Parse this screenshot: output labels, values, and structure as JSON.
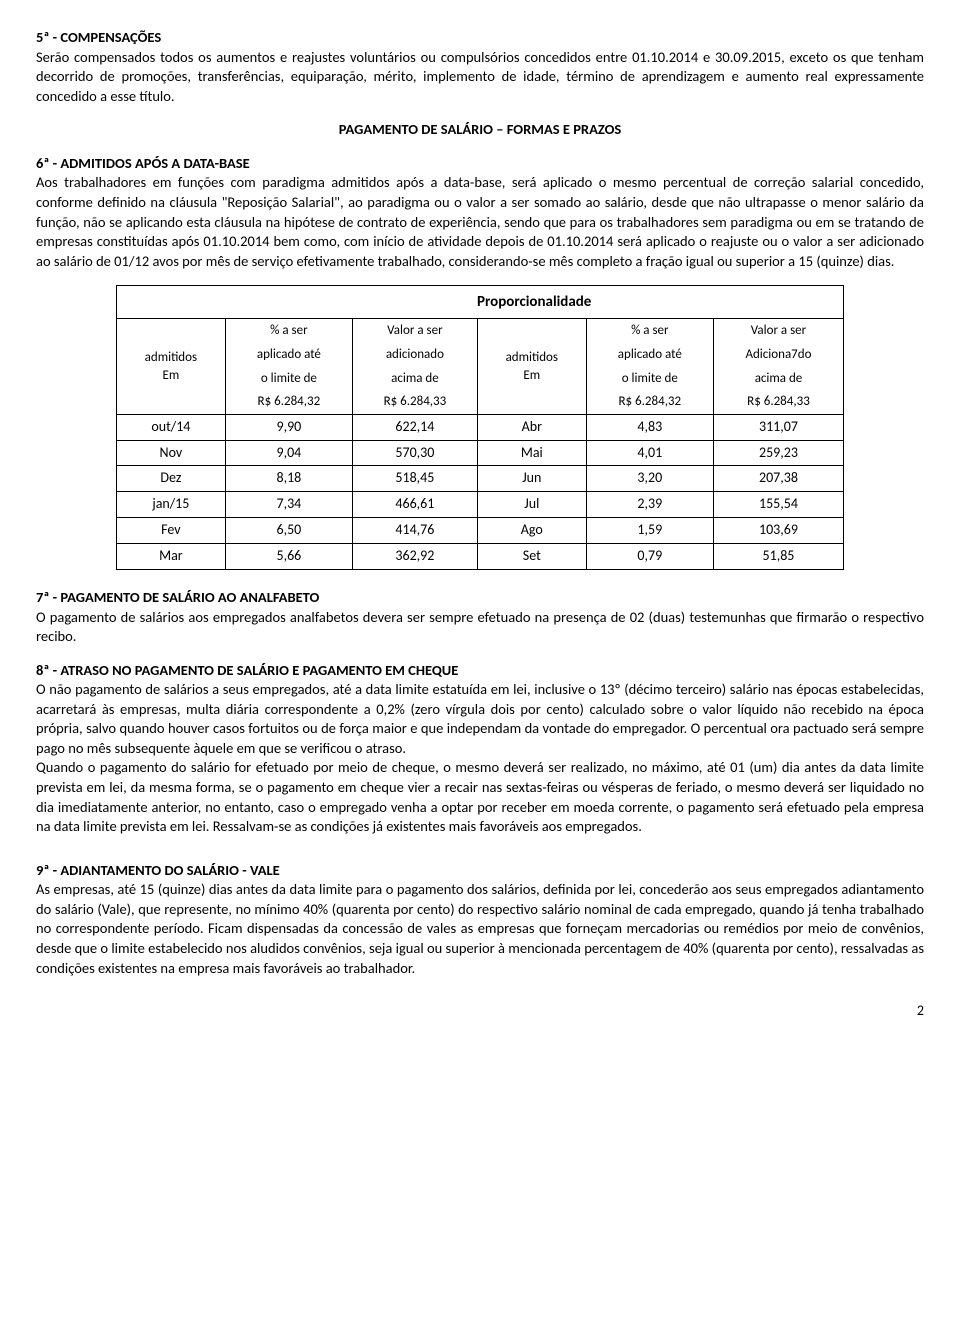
{
  "sec5": {
    "title": "5ª - COMPENSAÇÕES",
    "body": "Serão compensados todos os aumentos e reajustes voluntários ou compulsórios concedidos entre 01.10.2014 e 30.09.2015, exceto os que tenham decorrido de promoções, transferências, equiparação, mérito, implemento de idade, término de aprendizagem e aumento real expressamente concedido a esse título."
  },
  "heading_pagamento": "PAGAMENTO DE SALÁRIO – FORMAS E PRAZOS",
  "sec6": {
    "title": "6ª - ADMITIDOS APÓS A DATA-BASE",
    "body": "Aos trabalhadores em funções com paradigma admitidos após a data-base, será aplicado o mesmo percentual de correção salarial concedido, conforme definido na cláusula \"Reposição Salarial\", ao paradigma ou o valor a ser somado ao salário, desde que não ultrapasse o menor salário da função, não se aplicando esta cláusula na hipótese de contrato de experiência, sendo que para os trabalhadores sem paradigma ou em se tratando de empresas constituídas após 01.10.2014 bem como, com início de atividade depois de 01.10.2014 será aplicado o reajuste ou o valor a ser adicionado ao salário de 01/12 avos por mês de serviço efetivamente trabalhado, considerando-se mês completo a fração igual ou superior a 15 (quinze) dias."
  },
  "table": {
    "title": "Proporcionalidade",
    "hdr": {
      "adm": "admitidos",
      "em": "Em",
      "pct": "% a ser",
      "pct2": "aplicado até",
      "pct3": "o limite de",
      "pct4": "R$ 6.284,32",
      "val": "Valor a ser",
      "val2": "adicionado",
      "val3": "acima de",
      "val4": "R$ 6.284,33",
      "valB2": "Adiciona7do"
    },
    "rows": [
      {
        "m1": "out/14",
        "p1": "9,90",
        "v1": "622,14",
        "m2": "Abr",
        "p2": "4,83",
        "v2": "311,07"
      },
      {
        "m1": "Nov",
        "p1": "9,04",
        "v1": "570,30",
        "m2": "Mai",
        "p2": "4,01",
        "v2": "259,23"
      },
      {
        "m1": "Dez",
        "p1": "8,18",
        "v1": "518,45",
        "m2": "Jun",
        "p2": "3,20",
        "v2": "207,38"
      },
      {
        "m1": "jan/15",
        "p1": "7,34",
        "v1": "466,61",
        "m2": "Jul",
        "p2": "2,39",
        "v2": "155,54"
      },
      {
        "m1": "Fev",
        "p1": "6,50",
        "v1": "414,76",
        "m2": "Ago",
        "p2": "1,59",
        "v2": "103,69"
      },
      {
        "m1": "Mar",
        "p1": "5,66",
        "v1": "362,92",
        "m2": "Set",
        "p2": "0,79",
        "v2": "51,85"
      }
    ]
  },
  "sec7": {
    "title": "7ª - PAGAMENTO DE SALÁRIO AO ANALFABETO",
    "body": "O pagamento de salários aos empregados analfabetos devera ser sempre efetuado na presença de 02 (duas) testemunhas que firmarão o respectivo recibo."
  },
  "sec8": {
    "title": "8ª - ATRASO NO PAGAMENTO DE SALÁRIO E PAGAMENTO EM CHEQUE",
    "body1": "O não pagamento de salários a seus empregados, até a data limite estatuída em lei, inclusive o 13º (décimo terceiro) salário nas épocas estabelecidas, acarretará às empresas, multa diária correspondente a 0,2% (zero vírgula dois por cento) calculado sobre o valor líquido não recebido na época própria, salvo quando houver casos fortuitos ou de força maior e que independam da vontade do empregador. O percentual ora pactuado será sempre pago no mês subsequente àquele em que se verificou o atraso.",
    "body2": "Quando o pagamento do salário for efetuado por meio de cheque, o mesmo deverá ser realizado, no máximo, até 01 (um) dia antes da data limite prevista em lei, da mesma forma, se o pagamento em cheque vier a recair nas sextas-feiras ou vésperas de feriado, o mesmo deverá ser liquidado no dia imediatamente anterior, no entanto, caso o empregado venha a optar por receber em moeda corrente, o pagamento será efetuado pela empresa na data limite prevista em lei. Ressalvam-se as condições já existentes mais favoráveis aos empregados."
  },
  "sec9": {
    "title": "9ª - ADIANTAMENTO DO SALÁRIO - VALE",
    "body": "As empresas, até 15 (quinze) dias antes da data limite para o pagamento dos salários, definida por lei, concederão aos seus empregados adiantamento do salário (Vale), que represente, no mínimo 40% (quarenta por cento) do respectivo salário nominal de cada empregado, quando já tenha trabalhado no correspondente período. Ficam dispensadas da concessão de vales as empresas que forneçam mercadorias ou remédios por meio de convênios, desde que o limite estabelecido nos aludidos convênios, seja igual ou superior à mencionada percentagem de 40% (quarenta por cento), ressalvadas as condições existentes na empresa mais favoráveis ao trabalhador."
  },
  "page": "2"
}
